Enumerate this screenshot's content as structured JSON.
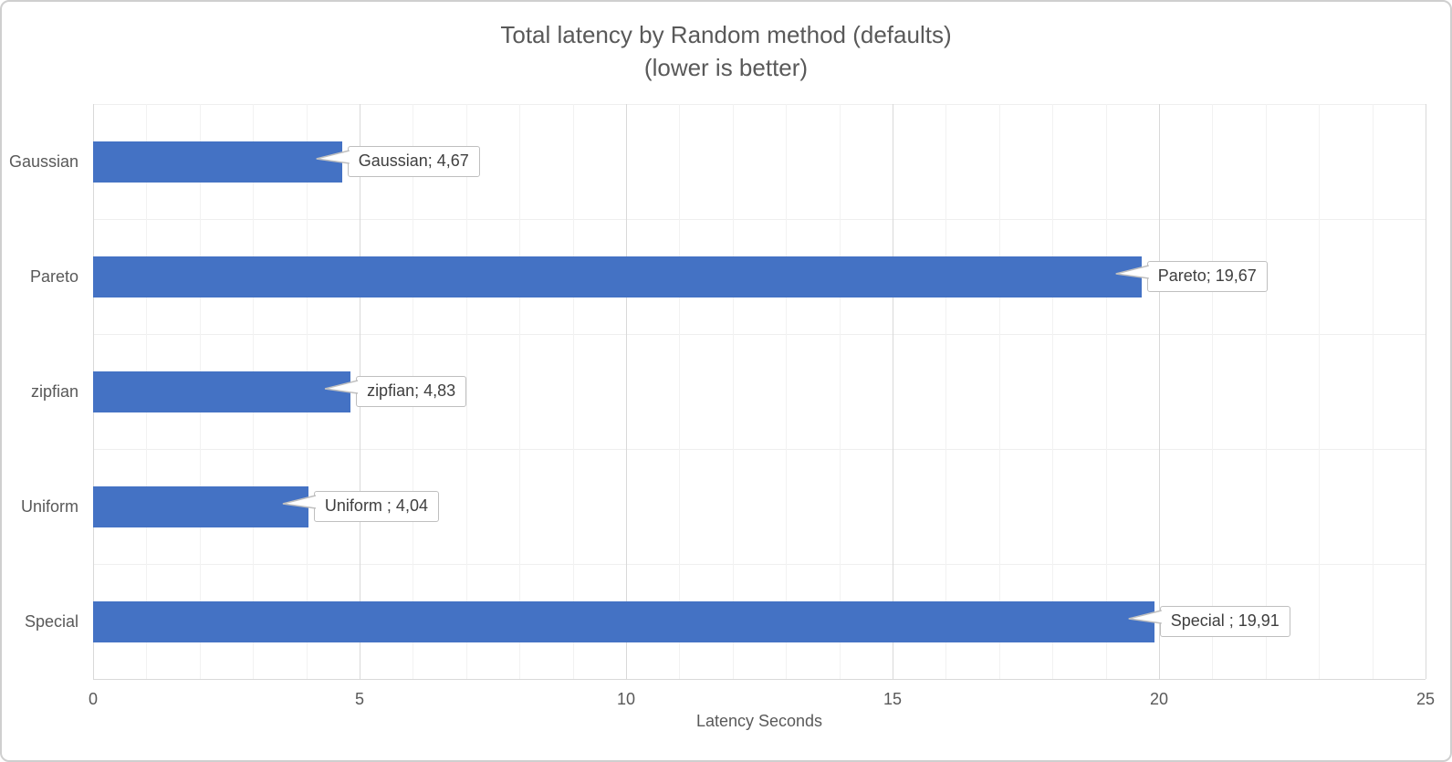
{
  "chart_data": {
    "type": "bar",
    "orientation": "horizontal",
    "title": "Total latency by Random method (defaults)",
    "subtitle": "(lower is better)",
    "xlabel": "Latency Seconds",
    "categories": [
      "Gaussian",
      "Pareto",
      "zipfian",
      "Uniform",
      "Special"
    ],
    "values": [
      4.67,
      19.67,
      4.83,
      4.04,
      19.91
    ],
    "data_labels": [
      "Gaussian; 4,67",
      "Pareto; 19,67",
      "zipfian; 4,83",
      "Uniform ; 4,04",
      "Special ; 19,91"
    ],
    "x_ticks": [
      0,
      5,
      10,
      15,
      20,
      25
    ],
    "xlim": [
      0,
      25
    ],
    "minor_unit": 1,
    "major_unit": 5,
    "grid": true,
    "legend": false,
    "colors": {
      "bar": "#4472C4",
      "title_text": "#595959",
      "axis_text": "#595959",
      "data_label_text": "#3F3F3F",
      "callout_border": "#BFBFBF",
      "callout_fill": "#FFFFFF",
      "major_grid": "#D9D9D9",
      "minor_grid": "#F2F2F2",
      "row_grid": "#EFEFEF",
      "background": "#FFFFFF"
    }
  }
}
